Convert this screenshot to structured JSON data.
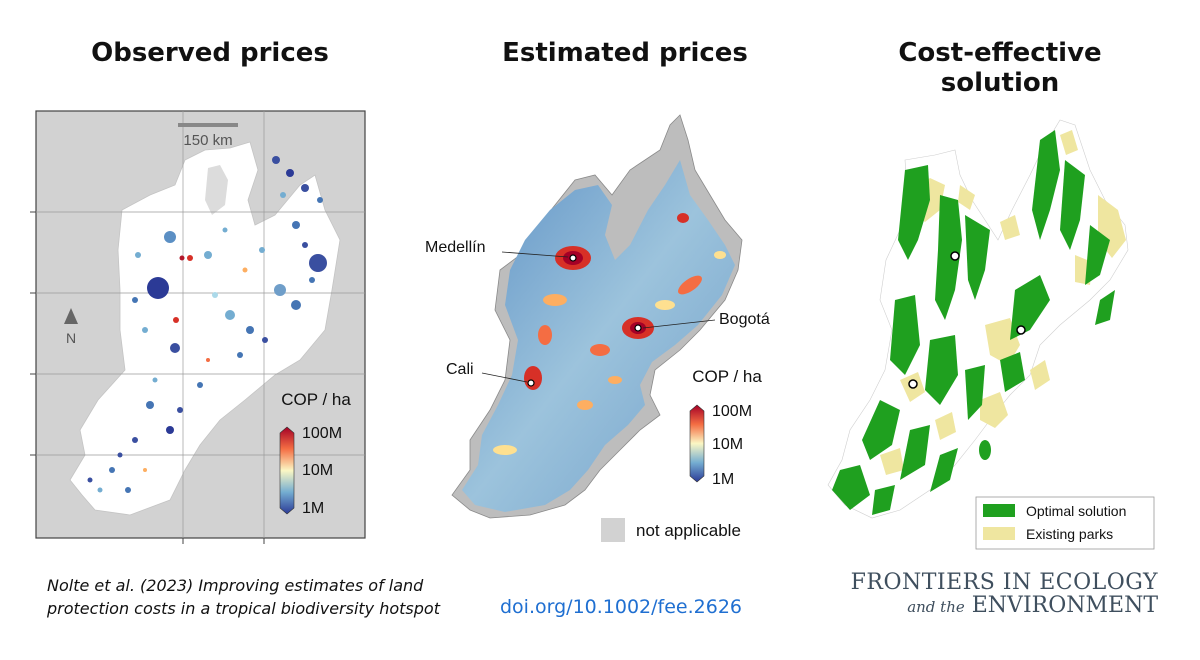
{
  "titles": {
    "observed": "Observed prices",
    "estimated": "Estimated prices",
    "solution": "Cost-effective solution"
  },
  "observed_map": {
    "scale_label": "150 km",
    "north_label": "N",
    "legend_title": "COP / ha",
    "legend_ticks": [
      "100M",
      "10M",
      "1M"
    ]
  },
  "estimated_map": {
    "cities": [
      {
        "name": "Medellín"
      },
      {
        "name": "Bogotá"
      },
      {
        "name": "Cali"
      }
    ],
    "legend_title": "COP / ha",
    "legend_ticks": [
      "100M",
      "10M",
      "1M"
    ],
    "na_label": "not applicable"
  },
  "solution_map": {
    "legend": [
      {
        "label": "Optimal solution",
        "color": "#1fa01f"
      },
      {
        "label": "Existing parks",
        "color": "#efe6a0"
      }
    ]
  },
  "footer": {
    "citation_line1": "Nolte et al. (2023) Improving estimates of land",
    "citation_line2": "protection costs in a tropical biodiversity hotspot",
    "doi": "doi.org/10.1002/fee.2626",
    "journal_line1": "FRONTIERS IN ECOLOGY",
    "journal_and_the": "and the",
    "journal_line2": "ENVIRONMENT"
  },
  "colors": {
    "scale_low": "#2b3a96",
    "scale_mid": "#fbf7c4",
    "scale_high": "#b2182b",
    "map_gray": "#d2d2d2",
    "optimal": "#1fa01f",
    "parks": "#efe6a0",
    "doi_blue": "#1f6fd1"
  }
}
